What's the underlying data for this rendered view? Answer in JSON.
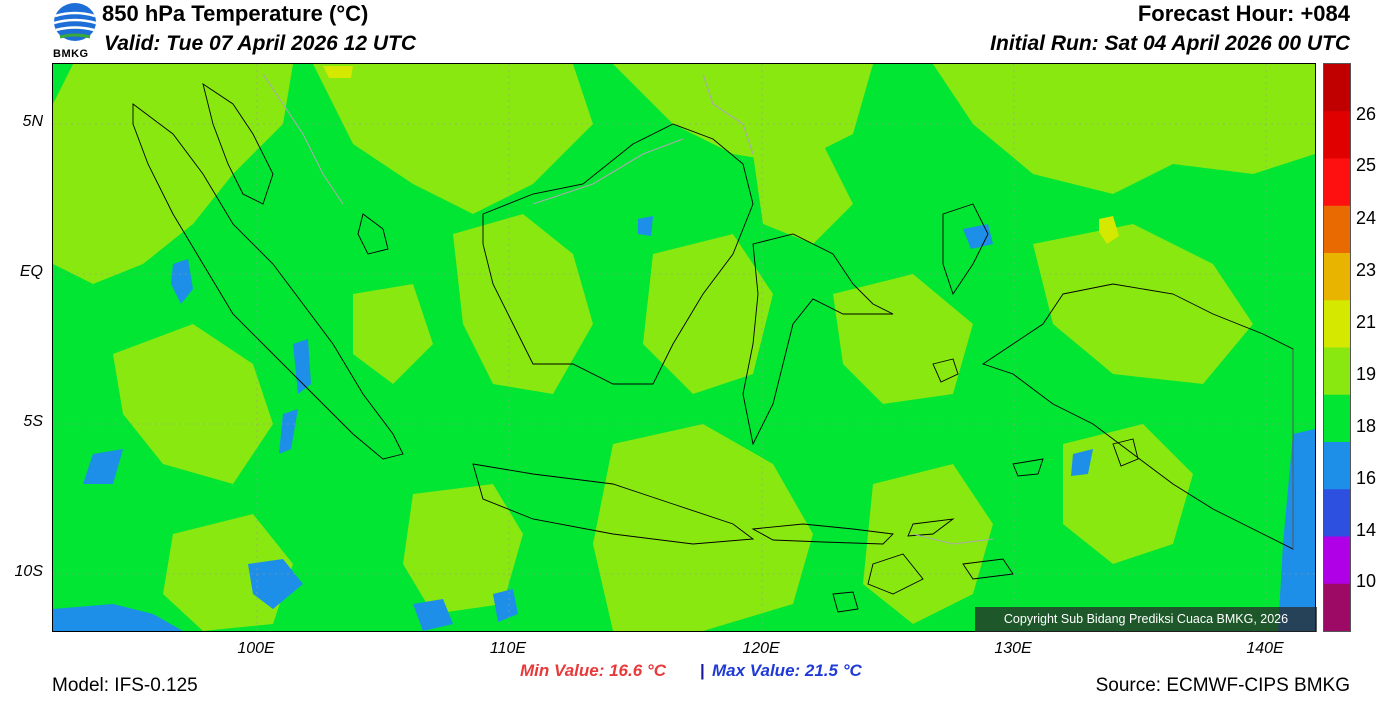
{
  "header": {
    "title": "850 hPa Temperature (°C)",
    "valid": "Valid: Tue 07 April 2026 12 UTC",
    "forecast_hour": "Forecast Hour: +084",
    "initial_run": "Initial Run: Sat 04 April 2026 00 UTC",
    "logo_text": "BMKG"
  },
  "map": {
    "lat_labels": [
      "5N",
      "EQ",
      "5S",
      "10S"
    ],
    "lon_labels": [
      "100E",
      "110E",
      "120E",
      "130E",
      "140E"
    ],
    "copyright": "Copyright Sub Bidang Prediksi Cuaca BMKG, 2026",
    "background_color": "#00e633",
    "warm_color": "#88e810",
    "cool_color": "#1e8fe8"
  },
  "colorbar": {
    "labels": [
      "26",
      "25",
      "24",
      "23",
      "21",
      "19",
      "18",
      "16",
      "14",
      "10"
    ],
    "colors": [
      "#c00000",
      "#e00000",
      "#ff1010",
      "#e86a00",
      "#e8b400",
      "#d4e800",
      "#88e810",
      "#00e633",
      "#1e8fe8",
      "#2d50e0",
      "#b000e8",
      "#9c0a66"
    ]
  },
  "footer": {
    "min_value": "Min Value: 16.6 °C",
    "separator": "|",
    "max_value": "Max Value: 21.5 °C",
    "model": "Model: IFS-0.125",
    "source": "Source: ECMWF-CIPS BMKG"
  }
}
